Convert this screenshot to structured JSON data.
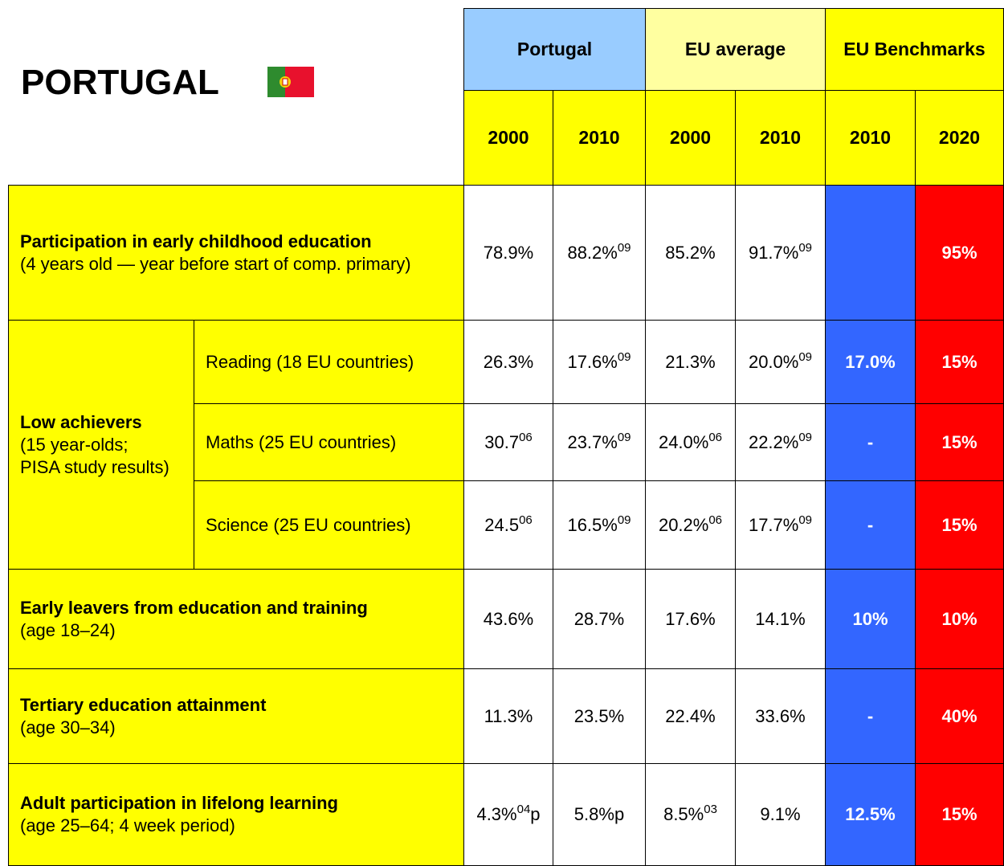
{
  "title": "PORTUGAL",
  "header": {
    "groups": [
      "Portugal",
      "EU average",
      "EU Benchmarks"
    ],
    "years": [
      "2000",
      "2010",
      "2000",
      "2010",
      "2010",
      "2020"
    ]
  },
  "rows": [
    {
      "title": "Participation in early childhood education",
      "subtitle": "(4 years old — year before start of comp. primary)",
      "cells": [
        {
          "text": "78.9%"
        },
        {
          "text": "88.2%",
          "sup": "09"
        },
        {
          "text": "85.2%"
        },
        {
          "text": "91.7%",
          "sup": "09"
        },
        null,
        {
          "text": "95%"
        }
      ]
    },
    {
      "group": {
        "title": "Low achievers",
        "subtitle": [
          "(15 year-olds;",
          "PISA study results)"
        ]
      },
      "subrows": [
        {
          "label": "Reading (18 EU countries)",
          "cells": [
            {
              "text": "26.3%"
            },
            {
              "text": "17.6%",
              "sup": "09"
            },
            {
              "text": "21.3%"
            },
            {
              "text": "20.0%",
              "sup": "09"
            },
            {
              "text": "17.0%"
            },
            {
              "text": "15%"
            }
          ]
        },
        {
          "label": "Maths (25 EU countries)",
          "cells": [
            {
              "text": "30.7",
              "sup": "06"
            },
            {
              "text": "23.7%",
              "sup": "09"
            },
            {
              "text": "24.0%",
              "sup": "06"
            },
            {
              "text": "22.2%",
              "sup": "09"
            },
            {
              "text": "-"
            },
            {
              "text": "15%"
            }
          ]
        },
        {
          "label": "Science (25 EU countries)",
          "cells": [
            {
              "text": "24.5",
              "sup": "06"
            },
            {
              "text": "16.5%",
              "sup": "09"
            },
            {
              "text": "20.2%",
              "sup": "06"
            },
            {
              "text": "17.7%",
              "sup": "09"
            },
            {
              "text": "-"
            },
            {
              "text": "15%"
            }
          ]
        }
      ]
    },
    {
      "title": "Early leavers from education and training",
      "subtitle": "(age 18–24)",
      "cells": [
        {
          "text": "43.6%"
        },
        {
          "text": "28.7%"
        },
        {
          "text": "17.6%"
        },
        {
          "text": "14.1%"
        },
        {
          "text": "10%"
        },
        {
          "text": "10%"
        }
      ]
    },
    {
      "title": "Tertiary education attainment",
      "subtitle": "(age 30–34)",
      "cells": [
        {
          "text": "11.3%"
        },
        {
          "text": "23.5%"
        },
        {
          "text": "22.4%"
        },
        {
          "text": "33.6%"
        },
        {
          "text": "-"
        },
        {
          "text": "40%"
        }
      ]
    },
    {
      "title": "Adult participation in lifelong learning",
      "subtitle": "(age 25–64; 4 week period)",
      "cells": [
        {
          "text": "4.3%",
          "sup": "04",
          "after": "p"
        },
        {
          "text": "5.8%p"
        },
        {
          "text": "8.5%",
          "sup": "03"
        },
        {
          "text": "9.1%"
        },
        {
          "text": "12.5%"
        },
        {
          "text": "15%"
        }
      ]
    }
  ]
}
